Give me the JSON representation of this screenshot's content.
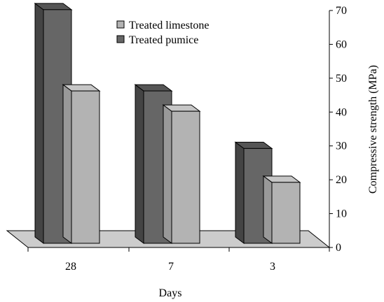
{
  "chart_data": {
    "type": "bar",
    "title": "",
    "categories": [
      "28",
      "7",
      "3"
    ],
    "series": [
      {
        "name": "Treated pumice",
        "values": [
          69,
          45,
          28
        ]
      },
      {
        "name": "Treated limestone",
        "values": [
          45,
          39,
          18
        ]
      }
    ],
    "legend_order": [
      "Treated limestone",
      "Treated pumice"
    ],
    "xlabel": "Days",
    "ylabel": "Compressive strength (MPa)",
    "ylim": [
      0,
      70
    ],
    "yticks": [
      "0",
      "10",
      "20",
      "30",
      "40",
      "50",
      "60",
      "70"
    ],
    "y_axis_position": "right",
    "legend_position": "top-center",
    "grid": false,
    "style": "3d",
    "colors": {
      "pumice_front": "#666666",
      "pumice_side": "#444444",
      "pumice_top": "#555555",
      "limestone_front": "#b3b3b3",
      "limestone_side": "#999999",
      "limestone_top": "#c6c6c6",
      "floor": "#cccccc"
    }
  }
}
